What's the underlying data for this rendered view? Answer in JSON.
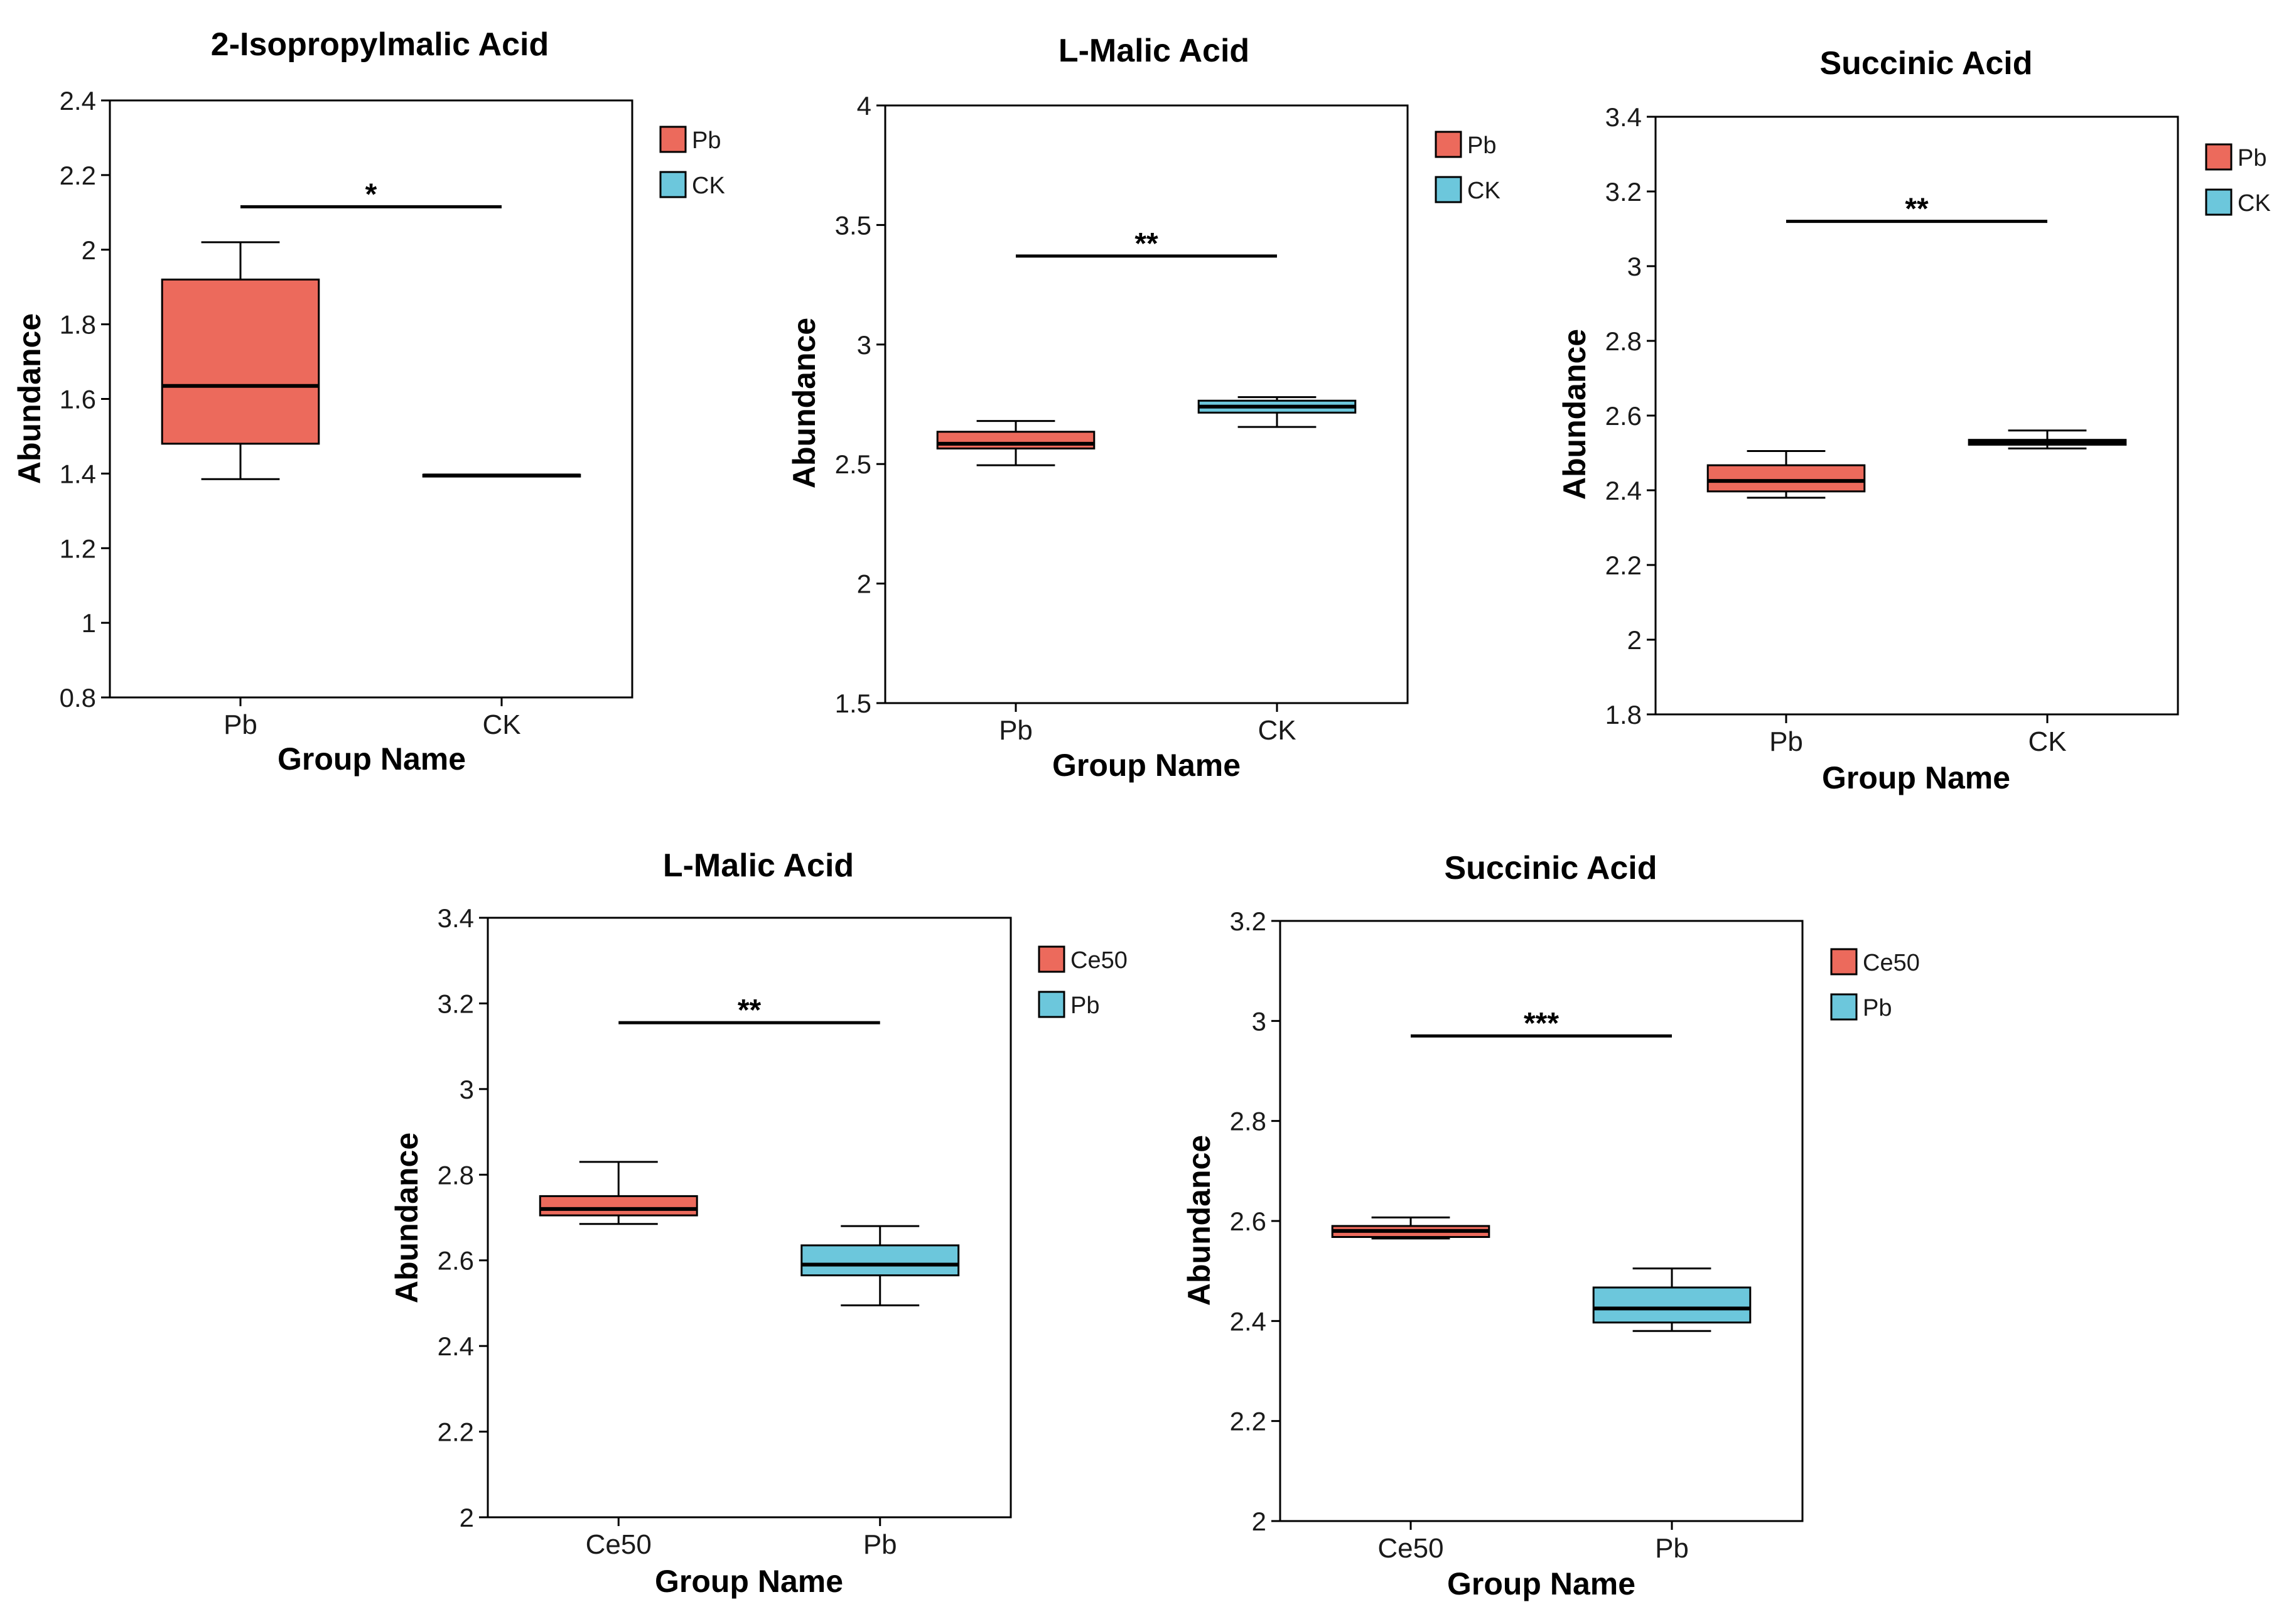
{
  "figure": {
    "background": "#ffffff"
  },
  "colors": {
    "red": "#ec6a5c",
    "blue": "#6cc7dc",
    "stroke": "#000000"
  },
  "chart_data": [
    {
      "type": "box",
      "title": "2-Isopropylmalic Acid",
      "xlabel": "Group Name",
      "ylabel": "Abundance",
      "ylim": [
        0.8,
        2.4
      ],
      "yticks": [
        0.8,
        1,
        1.2,
        1.4,
        1.6,
        1.8,
        2,
        2.2,
        2.4
      ],
      "ytick_labels": [
        "0.8",
        "1",
        "1.2",
        "1.4",
        "1.6",
        "1.8",
        "2",
        "2.2",
        "2.4"
      ],
      "categories": [
        "Pb",
        "CK"
      ],
      "legend": [
        "Pb",
        "CK"
      ],
      "boxes": [
        {
          "group": "Pb",
          "color": "red",
          "whisker_low": 1.385,
          "q1": 1.48,
          "median": 1.635,
          "q3": 1.92,
          "whisker_high": 2.02
        },
        {
          "group": "CK",
          "color": "blue",
          "whisker_low": 1.393,
          "q1": 1.393,
          "median": 1.395,
          "q3": 1.397,
          "whisker_high": 1.397
        }
      ],
      "significance": {
        "label": "*",
        "y": 2.115
      }
    },
    {
      "type": "box",
      "title": "L-Malic Acid",
      "xlabel": "Group Name",
      "ylabel": "Abundance",
      "ylim": [
        1.5,
        4
      ],
      "yticks": [
        1.5,
        2,
        2.5,
        3,
        3.5,
        4
      ],
      "ytick_labels": [
        "1.5",
        "2",
        "2.5",
        "3",
        "3.5",
        "4"
      ],
      "categories": [
        "Pb",
        "CK"
      ],
      "legend": [
        "Pb",
        "CK"
      ],
      "boxes": [
        {
          "group": "Pb",
          "color": "red",
          "whisker_low": 2.495,
          "q1": 2.565,
          "median": 2.585,
          "q3": 2.635,
          "whisker_high": 2.68
        },
        {
          "group": "CK",
          "color": "blue",
          "whisker_low": 2.655,
          "q1": 2.715,
          "median": 2.74,
          "q3": 2.765,
          "whisker_high": 2.78
        }
      ],
      "significance": {
        "label": "**",
        "y": 3.37
      }
    },
    {
      "type": "box",
      "title": "Succinic Acid",
      "xlabel": "Group Name",
      "ylabel": "Abundance",
      "ylim": [
        1.8,
        3.4
      ],
      "yticks": [
        1.8,
        2,
        2.2,
        2.4,
        2.6,
        2.8,
        3,
        3.2,
        3.4
      ],
      "ytick_labels": [
        "1.8",
        "2",
        "2.2",
        "2.4",
        "2.6",
        "2.8",
        "3",
        "3.2",
        "3.4"
      ],
      "categories": [
        "Pb",
        "CK"
      ],
      "legend": [
        "Pb",
        "CK"
      ],
      "boxes": [
        {
          "group": "Pb",
          "color": "red",
          "whisker_low": 2.38,
          "q1": 2.397,
          "median": 2.425,
          "q3": 2.467,
          "whisker_high": 2.505
        },
        {
          "group": "CK",
          "color": "blue",
          "whisker_low": 2.512,
          "q1": 2.522,
          "median": 2.529,
          "q3": 2.535,
          "whisker_high": 2.56
        }
      ],
      "significance": {
        "label": "**",
        "y": 3.12
      }
    },
    {
      "type": "box",
      "title": "L-Malic Acid",
      "xlabel": "Group Name",
      "ylabel": "Abundance",
      "ylim": [
        2,
        3.4
      ],
      "yticks": [
        2,
        2.2,
        2.4,
        2.6,
        2.8,
        3,
        3.2,
        3.4
      ],
      "ytick_labels": [
        "2",
        "2.2",
        "2.4",
        "2.6",
        "2.8",
        "3",
        "3.2",
        "3.4"
      ],
      "categories": [
        "Ce50",
        "Pb"
      ],
      "legend": [
        "Ce50",
        "Pb"
      ],
      "boxes": [
        {
          "group": "Ce50",
          "color": "red",
          "whisker_low": 2.685,
          "q1": 2.705,
          "median": 2.72,
          "q3": 2.75,
          "whisker_high": 2.83
        },
        {
          "group": "Pb",
          "color": "blue",
          "whisker_low": 2.495,
          "q1": 2.565,
          "median": 2.59,
          "q3": 2.635,
          "whisker_high": 2.68
        }
      ],
      "significance": {
        "label": "**",
        "y": 3.155
      }
    },
    {
      "type": "box",
      "title": "Succinic Acid",
      "xlabel": "Group Name",
      "ylabel": "Abundance",
      "ylim": [
        2,
        3.2
      ],
      "yticks": [
        2,
        2.2,
        2.4,
        2.6,
        2.8,
        3,
        3.2
      ],
      "ytick_labels": [
        "2",
        "2.2",
        "2.4",
        "2.6",
        "2.8",
        "3",
        "3.2"
      ],
      "categories": [
        "Ce50",
        "Pb"
      ],
      "legend": [
        "Ce50",
        "Pb"
      ],
      "boxes": [
        {
          "group": "Ce50",
          "color": "red",
          "whisker_low": 2.565,
          "q1": 2.568,
          "median": 2.58,
          "q3": 2.59,
          "whisker_high": 2.607
        },
        {
          "group": "Pb",
          "color": "blue",
          "whisker_low": 2.38,
          "q1": 2.397,
          "median": 2.425,
          "q3": 2.467,
          "whisker_high": 2.505
        }
      ],
      "significance": {
        "label": "***",
        "y": 2.97
      }
    }
  ]
}
